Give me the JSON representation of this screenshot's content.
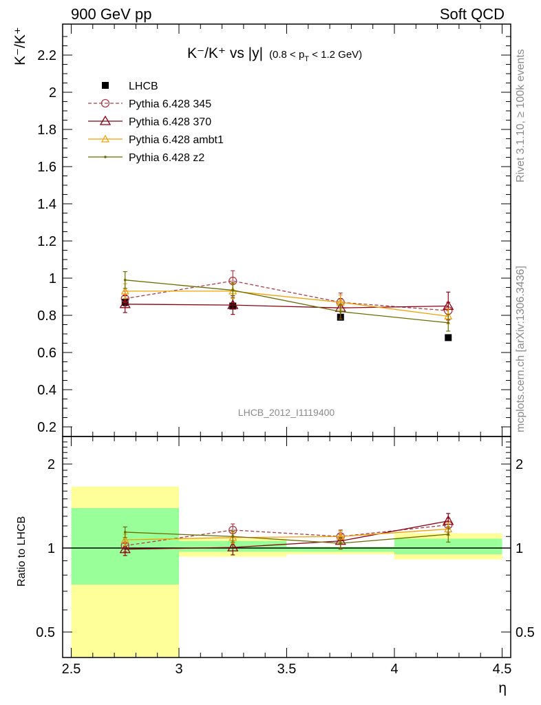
{
  "header": {
    "left": "900 GeV pp",
    "right": "Soft QCD"
  },
  "side_labels": {
    "rivet": "Rivet 3.1.10, ≥ 100k events",
    "mcplots": "mcplots.cern.ch [arXiv:1306.3436]"
  },
  "watermark": "LHCB_2012_I1119400",
  "chart_data": {
    "type": "scatter",
    "title": {
      "main": "K⁻/K⁺ vs |y|",
      "sub": "(0.8 < p_T < 1.2 GeV)"
    },
    "ylabel": "K⁻/K⁺",
    "xlabel": "η",
    "xlim": [
      2.5,
      4.5
    ],
    "ylim": [
      0.15,
      2.35
    ],
    "x_ticks": [
      "2.5",
      "3",
      "3.5",
      "4",
      "4.5"
    ],
    "y_ticks": [
      "0.2",
      "0.4",
      "0.6",
      "0.8",
      "1",
      "1.2",
      "1.4",
      "1.6",
      "1.8",
      "2",
      "2.2"
    ],
    "legend_position": "top-left",
    "x_bins": [
      [
        2.5,
        3.0
      ],
      [
        3.0,
        3.5
      ],
      [
        3.5,
        4.0
      ],
      [
        4.0,
        4.5
      ]
    ],
    "x": [
      2.75,
      3.25,
      3.75,
      4.25
    ],
    "series": [
      {
        "name": "LHCB",
        "color": "#000000",
        "marker": "square-filled",
        "line": "none",
        "values": [
          0.87,
          0.85,
          0.79,
          0.68
        ],
        "errors": [
          0,
          0,
          0,
          0
        ]
      },
      {
        "name": "Pythia 6.428 345",
        "color": "#b03a48",
        "marker": "circle-open",
        "line": "dashed",
        "values": [
          0.89,
          0.985,
          0.87,
          0.825
        ],
        "errors": [
          0.04,
          0.055,
          0.05,
          0.045
        ]
      },
      {
        "name": "Pythia 6.428 370",
        "color": "#8b0010",
        "marker": "triangle-open",
        "line": "solid",
        "values": [
          0.86,
          0.855,
          0.84,
          0.85
        ],
        "errors": [
          0.045,
          0.05,
          0.05,
          0.075
        ]
      },
      {
        "name": "Pythia 6.428 ambt1",
        "color": "#f0a000",
        "marker": "triangle-open-small",
        "line": "solid",
        "values": [
          0.93,
          0.93,
          0.87,
          0.795
        ],
        "errors": [
          0.04,
          0.04,
          0.04,
          0.04
        ]
      },
      {
        "name": "Pythia 6.428 z2",
        "color": "#6b6b00",
        "marker": "dot",
        "line": "solid",
        "values": [
          0.99,
          0.935,
          0.82,
          0.76
        ],
        "errors": [
          0.045,
          0.04,
          0.04,
          0.045
        ]
      }
    ],
    "ratio": {
      "ylabel": "Ratio to LHCB",
      "ylim": [
        0.4,
        2.5
      ],
      "scale": "log",
      "y_ticks": [
        "0.5",
        "1",
        "2"
      ],
      "band_inner": [
        [
          0.74,
          1.39
        ],
        [
          0.97,
          1.06
        ],
        [
          0.97,
          1.01
        ],
        [
          0.95,
          1.08
        ]
      ],
      "band_outer": [
        [
          0.38,
          1.66
        ],
        [
          0.93,
          1.08
        ],
        [
          0.95,
          1.01
        ],
        [
          0.91,
          1.13
        ]
      ],
      "series": [
        {
          "name": "Pythia 6.428 345",
          "values": [
            1.02,
            1.16,
            1.1,
            1.21
          ],
          "errors": [
            0.05,
            0.06,
            0.06,
            0.07
          ]
        },
        {
          "name": "Pythia 6.428 370",
          "values": [
            0.99,
            1.005,
            1.06,
            1.25
          ],
          "errors": [
            0.05,
            0.06,
            0.06,
            0.08
          ]
        },
        {
          "name": "Pythia 6.428 ambt1",
          "values": [
            1.07,
            1.09,
            1.1,
            1.17
          ],
          "errors": [
            0.05,
            0.05,
            0.05,
            0.06
          ]
        },
        {
          "name": "Pythia 6.428 z2",
          "values": [
            1.14,
            1.1,
            1.04,
            1.12
          ],
          "errors": [
            0.05,
            0.05,
            0.05,
            0.07
          ]
        }
      ]
    }
  }
}
